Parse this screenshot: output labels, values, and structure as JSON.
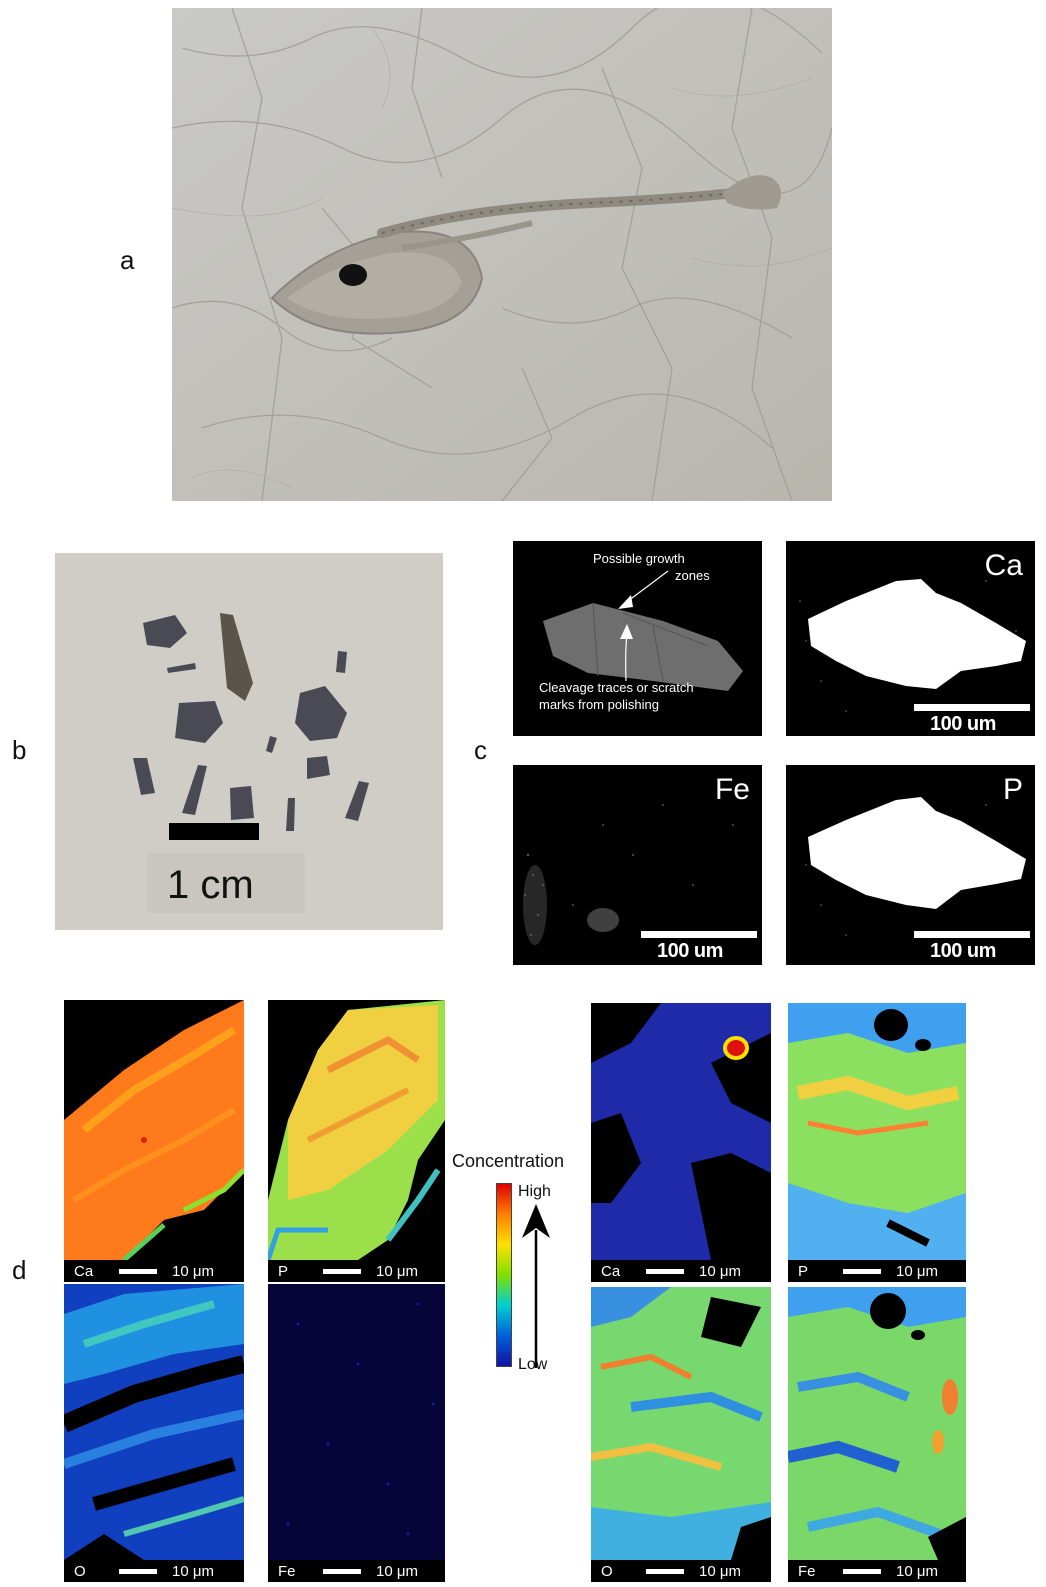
{
  "panels": {
    "a": "a",
    "b": "b",
    "c": "c",
    "d": "d"
  },
  "panel_b": {
    "scale_label": "1 cm"
  },
  "panel_c": {
    "annotation_top_line1": "Possible growth",
    "annotation_top_line2": "zones",
    "annotation_bottom_line1": "Cleavage traces or scratch",
    "annotation_bottom_line2": "marks from polishing",
    "maps": [
      {
        "element": "Ca",
        "scale": "100 um"
      },
      {
        "element": "Fe",
        "scale": "100 um"
      },
      {
        "element": "P",
        "scale": "100 um"
      }
    ]
  },
  "panel_d": {
    "legend_title": "Concentration",
    "legend_high": "High",
    "legend_low": "Low",
    "left_maps": [
      {
        "element": "Ca",
        "scale": "10 μm"
      },
      {
        "element": "P",
        "scale": "10 μm"
      },
      {
        "element": "O",
        "scale": "10 μm"
      },
      {
        "element": "Fe",
        "scale": "10 μm"
      }
    ],
    "right_maps": [
      {
        "element": "Ca",
        "scale": "10 μm"
      },
      {
        "element": "P",
        "scale": "10 μm"
      },
      {
        "element": "O",
        "scale": "10 μm"
      },
      {
        "element": "Fe",
        "scale": "10 μm"
      }
    ]
  }
}
